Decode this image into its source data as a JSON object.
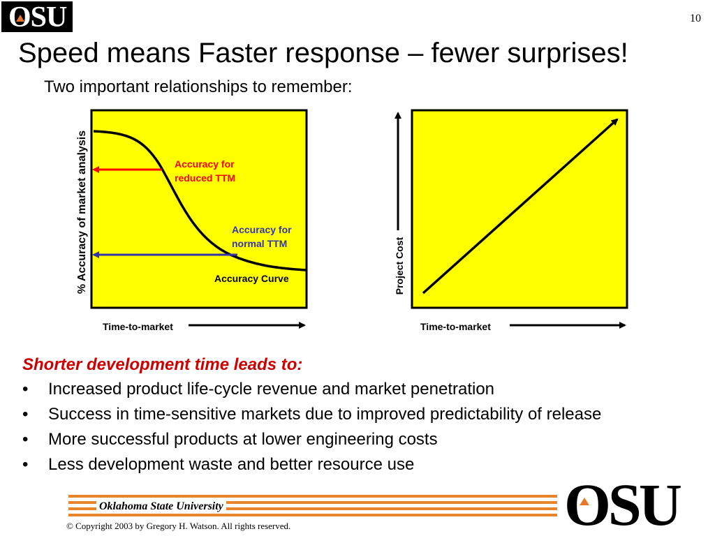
{
  "header": {
    "logo_text": "OSU",
    "page_number": "10",
    "title": "Speed means Faster response – fewer surprises!",
    "subtitle": "Two important relationships to remember:"
  },
  "left_chart": {
    "y_axis_label": "% Accuracy of market analysis",
    "x_axis_label": "Time-to-market",
    "curve_label": "Accuracy Curve",
    "reduced_label_line1": "Accuracy for",
    "reduced_label_line2": "reduced TTM",
    "normal_label_line1": "Accuracy for",
    "normal_label_line2": "normal TTM"
  },
  "right_chart": {
    "y_axis_label": "Project Cost",
    "x_axis_label": "Time-to-market"
  },
  "colors": {
    "panel_fill": "#ffff00",
    "reduced_arrow": "#ff0000",
    "normal_arrow": "#3333aa",
    "heading_red": "#cc0000",
    "footer_orange": "#e8842a"
  },
  "bullets": {
    "heading": "Shorter development time leads to:",
    "items": [
      "Increased product life-cycle revenue and market penetration",
      "Success in time-sensitive markets due to improved predictability of release",
      "More successful products at lower engineering costs",
      "Less development waste and better resource use"
    ],
    "bullet_char": "•"
  },
  "footer": {
    "university": "Oklahoma State University",
    "copyright": "© Copyright 2003 by Gregory H. Watson. All rights reserved.",
    "logo_text": "OSU"
  }
}
